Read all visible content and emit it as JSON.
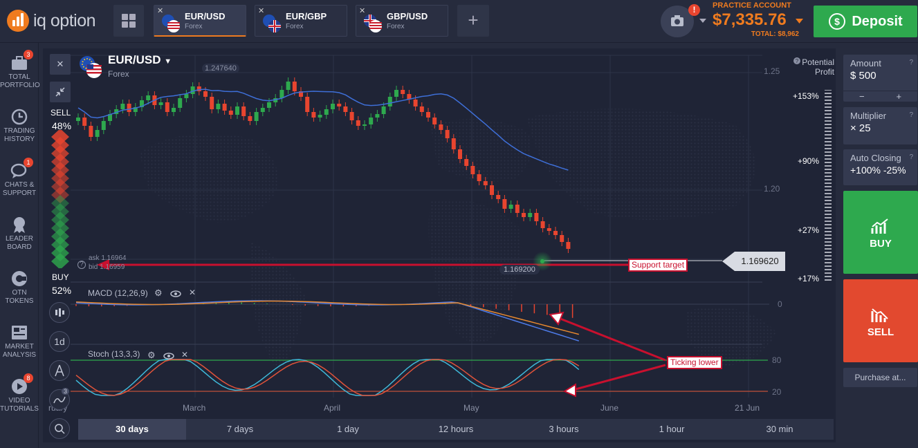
{
  "brand": {
    "name": "iq option"
  },
  "tabs": [
    {
      "pair": "EUR/USD",
      "sub": "Forex",
      "active": true
    },
    {
      "pair": "EUR/GBP",
      "sub": "Forex",
      "active": false
    },
    {
      "pair": "GBP/USD",
      "sub": "Forex",
      "active": false
    }
  ],
  "account": {
    "label": "PRACTICE ACCOUNT",
    "balance": "$7,335.76",
    "total": "TOTAL: $8,962",
    "camera_badge": "!"
  },
  "deposit": {
    "label": "Deposit"
  },
  "nav": [
    {
      "label": "TOTAL PORTFOLIO",
      "badge": "3"
    },
    {
      "label": "TRADING HISTORY",
      "badge": ""
    },
    {
      "label": "CHATS & SUPPORT",
      "badge": "1"
    },
    {
      "label": "LEADER BOARD",
      "badge": ""
    },
    {
      "label": "OTN TOKENS",
      "badge": ""
    },
    {
      "label": "MARKET ANALYSIS",
      "badge": ""
    },
    {
      "label": "VIDEO TUTORIALS",
      "badge": "8"
    }
  ],
  "asset": {
    "pair": "EUR/USD",
    "type": "Forex"
  },
  "sentiment": {
    "sell_label": "SELL",
    "sell_pct": "48%",
    "buy_label": "BUY",
    "buy_pct": "52%"
  },
  "chart": {
    "high_label": "1.247640",
    "low_label": "1.169200",
    "current_price": "1.169620",
    "ask": "ask 1.16964",
    "bid": "bid 1.16959",
    "y_ticks": [
      "1.25",
      "1.20"
    ],
    "x_ticks": [
      "ruary",
      "March",
      "April",
      "May",
      "June",
      "21 Jun"
    ],
    "potential_profit": "Potential Profit",
    "profit_ticks": [
      "+153%",
      "+90%",
      "+27%",
      "+17%"
    ],
    "macd_label": "MACD (12,26,9)",
    "macd_zero": "0",
    "stoch_label": "Stoch (13,3,3)",
    "stoch_levels": [
      "80",
      "20"
    ],
    "annotation_support": "Support target",
    "annotation_ticking": "Ticking lower",
    "interval_label": "1d",
    "indicator_badge": "3"
  },
  "trade": {
    "amount_label": "Amount",
    "amount_value": "$  500",
    "multiplier_label": "Multiplier",
    "multiplier_value": "× 25",
    "auto_label": "Auto Closing",
    "auto_value": "+100%  -25%",
    "buy": "BUY",
    "sell": "SELL",
    "purchase": "Purchase at..."
  },
  "timeframes": [
    "30 days",
    "7 days",
    "1 day",
    "12 hours",
    "3 hours",
    "1 hour",
    "30 min"
  ],
  "colors": {
    "up": "#2ea94e",
    "down": "#e8452f",
    "accent": "#ef7b1f",
    "annotation": "#c8102e"
  }
}
